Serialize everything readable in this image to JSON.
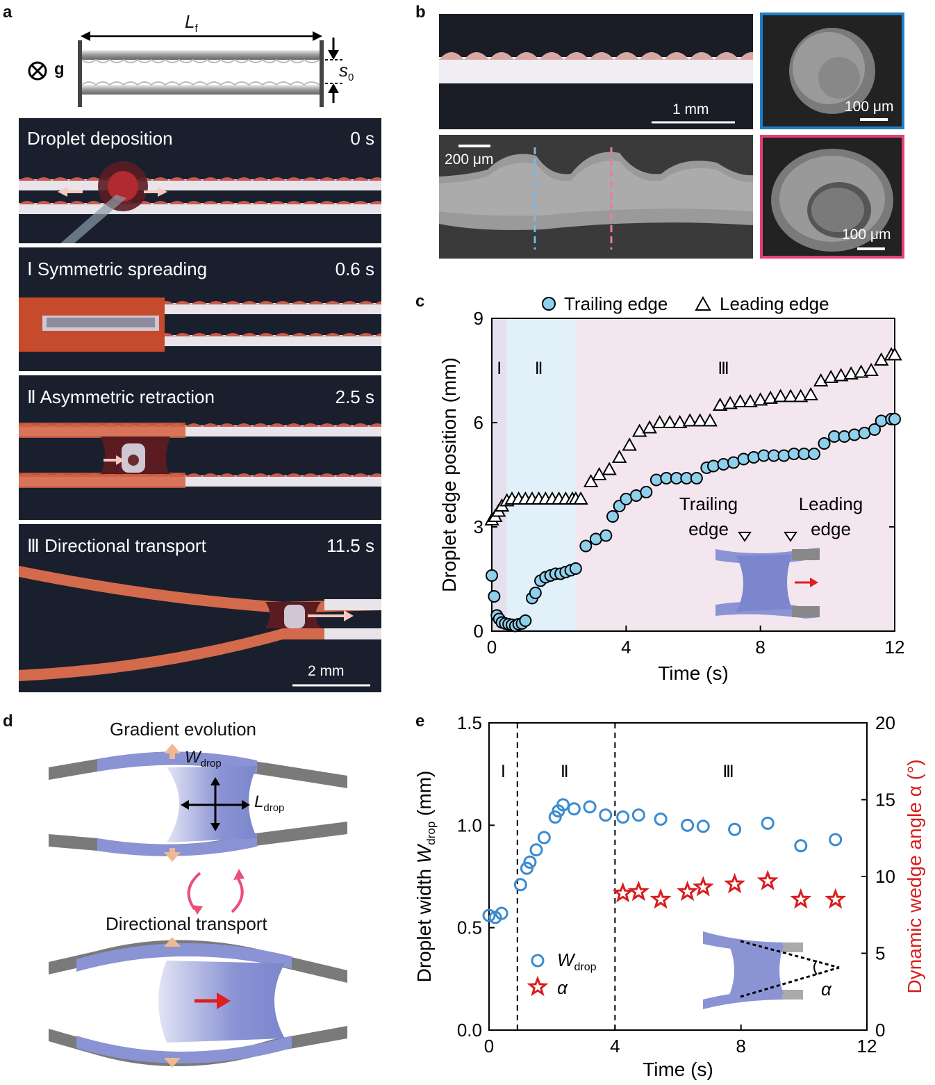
{
  "panels": {
    "a": "a",
    "b": "b",
    "c": "c",
    "d": "d",
    "e": "e"
  },
  "schematic": {
    "g_label": "g",
    "lf_main": "L",
    "lf_sub": "f",
    "s0_main": "s",
    "s0_sub": "0"
  },
  "frames": [
    {
      "title": "Droplet deposition",
      "time": "0 s"
    },
    {
      "title": "Ⅰ  Symmetric spreading",
      "time": "0.6 s"
    },
    {
      "title": "Ⅱ  Asymmetric retraction",
      "time": "2.5 s"
    },
    {
      "title": "Ⅲ  Directional transport",
      "time": "11.5 s"
    }
  ],
  "scale_a": "2 mm",
  "panel_b": {
    "scale_top": "1 mm",
    "scale_sem": "200 μm",
    "scale_sem_top": "100 μm",
    "scale_sem_bottom": "100 μm",
    "color_blue": "#1f7fc9",
    "color_pink": "#e83e7c"
  },
  "panel_d": {
    "title_top": "Gradient evolution",
    "title_bottom": "Directional transport",
    "w_main": "W",
    "w_sub": "drop",
    "l_main": "L",
    "l_sub": "drop"
  },
  "chart_data": [
    {
      "type": "scatter",
      "title": "",
      "xlabel": "Time (s)",
      "ylabel": "Droplet edge position (mm)",
      "xlim": [
        0,
        12
      ],
      "ylim": [
        0,
        9
      ],
      "xticks": [
        0,
        4,
        8,
        12
      ],
      "yticks": [
        0,
        3,
        6,
        9
      ],
      "legend": [
        "Trailing edge",
        "Leading edge"
      ],
      "regions": [
        {
          "label": "Ⅰ",
          "from": 0,
          "to": 0.45,
          "color": "#e4e0ee"
        },
        {
          "label": "Ⅱ",
          "from": 0.45,
          "to": 2.5,
          "color": "#e2f0fa"
        },
        {
          "label": "Ⅲ",
          "from": 2.5,
          "to": 12,
          "color": "#f4e6ee"
        }
      ],
      "inset": {
        "trailing": "Trailing",
        "trailing2": "edge",
        "leading": "Leading",
        "leading2": "edge"
      },
      "series": [
        {
          "name": "Trailing edge",
          "x": [
            0.0,
            0.07,
            0.15,
            0.22,
            0.3,
            0.4,
            0.5,
            0.6,
            0.7,
            0.8,
            0.9,
            1.0,
            1.2,
            1.3,
            1.45,
            1.6,
            1.75,
            1.9,
            2.05,
            2.2,
            2.35,
            2.5,
            2.8,
            3.1,
            3.4,
            3.6,
            3.8,
            4.0,
            4.3,
            4.6,
            4.9,
            5.2,
            5.5,
            5.8,
            6.1,
            6.4,
            6.6,
            6.9,
            7.2,
            7.5,
            7.8,
            8.1,
            8.4,
            8.7,
            9.0,
            9.3,
            9.6,
            9.9,
            10.2,
            10.5,
            10.8,
            11.1,
            11.4,
            11.6,
            11.9,
            12.0
          ],
          "y": [
            1.6,
            1.0,
            0.45,
            0.35,
            0.25,
            0.22,
            0.2,
            0.18,
            0.15,
            0.2,
            0.22,
            0.3,
            0.95,
            1.1,
            1.45,
            1.55,
            1.6,
            1.65,
            1.65,
            1.7,
            1.75,
            1.8,
            2.45,
            2.65,
            2.75,
            3.3,
            3.6,
            3.8,
            3.9,
            4.0,
            4.35,
            4.4,
            4.4,
            4.4,
            4.4,
            4.7,
            4.75,
            4.8,
            4.85,
            4.95,
            5.0,
            5.05,
            5.05,
            5.05,
            5.1,
            5.1,
            5.1,
            5.4,
            5.6,
            5.6,
            5.65,
            5.7,
            5.8,
            6.05,
            6.1,
            6.1
          ]
        },
        {
          "name": "Leading edge",
          "x": [
            0.0,
            0.1,
            0.2,
            0.3,
            0.45,
            0.6,
            0.8,
            1.0,
            1.2,
            1.4,
            1.6,
            1.8,
            2.0,
            2.2,
            2.4,
            2.5,
            2.65,
            2.95,
            3.2,
            3.5,
            3.8,
            4.1,
            4.4,
            4.7,
            5.0,
            5.3,
            5.6,
            5.9,
            6.2,
            6.5,
            6.8,
            7.1,
            7.4,
            7.7,
            8.0,
            8.3,
            8.6,
            8.9,
            9.2,
            9.5,
            9.8,
            10.1,
            10.4,
            10.7,
            11.0,
            11.3,
            11.6,
            11.9,
            12.0
          ],
          "y": [
            3.2,
            3.3,
            3.45,
            3.6,
            3.75,
            3.8,
            3.8,
            3.8,
            3.8,
            3.8,
            3.8,
            3.8,
            3.8,
            3.8,
            3.8,
            3.8,
            3.8,
            4.3,
            4.5,
            4.65,
            5.0,
            5.35,
            5.75,
            5.85,
            6.0,
            6.0,
            6.0,
            6.05,
            6.05,
            6.05,
            6.5,
            6.55,
            6.6,
            6.6,
            6.65,
            6.7,
            6.75,
            6.75,
            6.75,
            6.8,
            7.2,
            7.3,
            7.35,
            7.4,
            7.45,
            7.5,
            7.8,
            7.95,
            7.95
          ]
        }
      ]
    },
    {
      "type": "scatter",
      "title": "",
      "xlabel": "Time (s)",
      "ylabel_main": "Droplet width ",
      "ylabel_var": "W",
      "ylabel_sub": "drop",
      "ylabel_unit": " (mm)",
      "ylabel2": "Dynamic wedge angle α (°)",
      "xlim": [
        0,
        12
      ],
      "ylim": [
        0,
        1.5
      ],
      "ylim2": [
        0,
        20
      ],
      "xticks": [
        0,
        4,
        8,
        12
      ],
      "yticks": [
        "0.0",
        "0.5",
        "1.0",
        "1.5"
      ],
      "yticks2": [
        0,
        5,
        10,
        15,
        20
      ],
      "phases": [
        "Ⅰ",
        "Ⅱ",
        "Ⅲ"
      ],
      "phase_lines": [
        0.9,
        4.0
      ],
      "legend": [
        {
          "name_main": "W",
          "name_sub": "drop",
          "color": "#3a8bd0"
        },
        {
          "name_main": "α",
          "color": "#d81e1e"
        }
      ],
      "inset_alpha": "α",
      "series": [
        {
          "name": "W_drop",
          "axis": "left",
          "color": "#3a8bd0",
          "x": [
            0.0,
            0.2,
            0.4,
            1.0,
            1.2,
            1.3,
            1.5,
            1.75,
            2.1,
            2.2,
            2.35,
            2.7,
            3.2,
            3.7,
            4.25,
            4.75,
            5.45,
            6.3,
            6.8,
            7.8,
            8.85,
            9.9,
            11.0
          ],
          "y": [
            0.56,
            0.55,
            0.57,
            0.71,
            0.79,
            0.82,
            0.88,
            0.94,
            1.04,
            1.07,
            1.1,
            1.08,
            1.09,
            1.05,
            1.04,
            1.05,
            1.03,
            1.0,
            0.995,
            0.98,
            1.01,
            0.9,
            0.93
          ]
        },
        {
          "name": "alpha",
          "axis": "right",
          "color": "#d81e1e",
          "x": [
            4.25,
            4.75,
            5.45,
            6.3,
            6.8,
            7.8,
            8.85,
            9.9,
            11.0
          ],
          "y": [
            8.9,
            9.0,
            8.5,
            9.0,
            9.3,
            9.5,
            9.7,
            8.5,
            8.5
          ]
        }
      ]
    }
  ]
}
